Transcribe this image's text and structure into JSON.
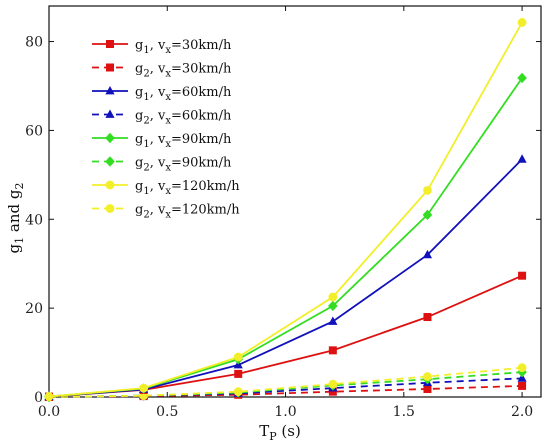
{
  "chart_data": {
    "type": "line",
    "title": "",
    "xlabel_main": "T",
    "xlabel_sub": "P",
    "xlabel_unit": " (s)",
    "ylabel": {
      "main": "g",
      "sub1": "1",
      "mid": " and g",
      "sub2": "2"
    },
    "xlim": [
      0.0,
      2.08
    ],
    "ylim": [
      0,
      88
    ],
    "xticks": [
      0.0,
      0.5,
      1.0,
      1.5,
      2.0
    ],
    "xtick_labels": [
      "0.0",
      "0.5",
      "1.0",
      "1.5",
      "2.0"
    ],
    "yticks": [
      0,
      20,
      40,
      60,
      80
    ],
    "ytick_labels": [
      "0",
      "20",
      "40",
      "60",
      "80"
    ],
    "grid": false,
    "legend_position": "top-left",
    "x": [
      0.0,
      0.4,
      0.8,
      1.2,
      1.6,
      2.0
    ],
    "series": [
      {
        "label": {
          "g": "g",
          "gs": "1",
          "v": ", v",
          "vs": "x",
          "speed": "=30km/h"
        },
        "color": "#dd1111",
        "marker": "square",
        "dash": false,
        "values": [
          0.1,
          1.6,
          5.2,
          10.5,
          18.0,
          27.3
        ]
      },
      {
        "label": {
          "g": "g",
          "gs": "2",
          "v": ", v",
          "vs": "x",
          "speed": "=30km/h"
        },
        "color": "#dd1111",
        "marker": "square",
        "dash": true,
        "values": [
          0.0,
          0.2,
          0.5,
          1.2,
          1.8,
          2.5
        ]
      },
      {
        "label": {
          "g": "g",
          "gs": "1",
          "v": ", v",
          "vs": "x",
          "speed": "=60km/h"
        },
        "color": "#1111bb",
        "marker": "triangle",
        "dash": false,
        "values": [
          0.1,
          1.7,
          7.2,
          17.0,
          32.0,
          53.5
        ]
      },
      {
        "label": {
          "g": "g",
          "gs": "2",
          "v": ", v",
          "vs": "x",
          "speed": "=60km/h"
        },
        "color": "#1111bb",
        "marker": "triangle",
        "dash": true,
        "values": [
          0.0,
          0.3,
          0.8,
          2.0,
          3.2,
          4.2
        ]
      },
      {
        "label": {
          "g": "g",
          "gs": "1",
          "v": ", v",
          "vs": "x",
          "speed": "=90km/h"
        },
        "color": "#33dd22",
        "marker": "diamond",
        "dash": false,
        "values": [
          0.1,
          1.9,
          8.5,
          20.5,
          41.0,
          71.8
        ]
      },
      {
        "label": {
          "g": "g",
          "gs": "2",
          "v": ", v",
          "vs": "x",
          "speed": "=90km/h"
        },
        "color": "#33dd22",
        "marker": "diamond",
        "dash": true,
        "values": [
          0.0,
          0.3,
          1.0,
          2.6,
          4.0,
          5.6
        ]
      },
      {
        "label": {
          "g": "g",
          "gs": "1",
          "v": ", v",
          "vs": "x",
          "speed": "=120km/h"
        },
        "color": "#f2ef2a",
        "marker": "circle",
        "dash": false,
        "values": [
          0.1,
          2.0,
          9.0,
          22.5,
          46.5,
          84.3
        ]
      },
      {
        "label": {
          "g": "g",
          "gs": "2",
          "v": ", v",
          "vs": "x",
          "speed": "=120km/h"
        },
        "color": "#f2ef2a",
        "marker": "circle",
        "dash": true,
        "values": [
          0.0,
          0.3,
          1.2,
          2.9,
          4.6,
          6.6
        ]
      }
    ]
  }
}
